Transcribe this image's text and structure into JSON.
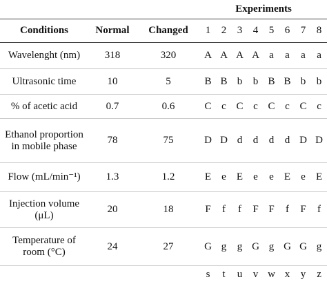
{
  "table": {
    "title": "Experiments",
    "columns": [
      "Conditions",
      "Normal",
      "Changed",
      "1",
      "2",
      "3",
      "4",
      "5",
      "6",
      "7",
      "8"
    ],
    "rows": [
      {
        "label": "Wavelenght (nm)",
        "normal": 318,
        "changed": 320,
        "experiments": [
          "A",
          "A",
          "A",
          "A",
          "a",
          "a",
          "a",
          "a"
        ]
      },
      {
        "label": "Ultrasonic time",
        "normal": 10,
        "changed": 5,
        "experiments": [
          "B",
          "B",
          "b",
          "b",
          "B",
          "B",
          "b",
          "b"
        ]
      },
      {
        "label": "% of acetic acid",
        "normal": 0.7,
        "changed": 0.6,
        "experiments": [
          "C",
          "c",
          "C",
          "c",
          "C",
          "c",
          "C",
          "c"
        ]
      },
      {
        "label": "Ethanol proportion in mobile phase",
        "normal": 78,
        "changed": 75,
        "experiments": [
          "D",
          "D",
          "d",
          "d",
          "d",
          "d",
          "D",
          "D"
        ]
      },
      {
        "label": "Flow (mL/min⁻¹)",
        "normal": 1.3,
        "changed": 1.2,
        "experiments": [
          "E",
          "e",
          "E",
          "e",
          "e",
          "E",
          "e",
          "E"
        ]
      },
      {
        "label": "Injection volume (μL)",
        "normal": 20,
        "changed": 18,
        "experiments": [
          "F",
          "f",
          "f",
          "F",
          "F",
          "f",
          "F",
          "f"
        ]
      },
      {
        "label": "Temperature of room (°C)",
        "normal": 24,
        "changed": 27,
        "experiments": [
          "G",
          "g",
          "g",
          "G",
          "g",
          "G",
          "G",
          "g"
        ]
      }
    ],
    "footer": [
      "s",
      "t",
      "u",
      "v",
      "w",
      "x",
      "y",
      "z"
    ]
  }
}
